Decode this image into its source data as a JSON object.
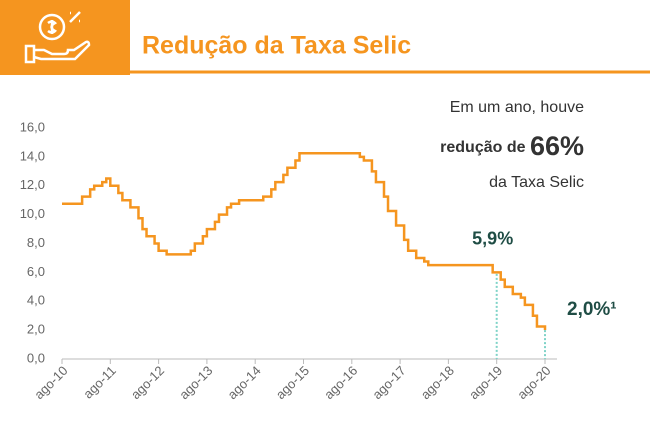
{
  "chart_data": {
    "type": "line",
    "title": "Redução da Taxa Selic",
    "step": true,
    "color": "#f5951f",
    "x": [
      0,
      5,
      7,
      8,
      10,
      11,
      12,
      14,
      15,
      17,
      19,
      20,
      21,
      23,
      24,
      26,
      32,
      33,
      35,
      36,
      38,
      39,
      41,
      42,
      44,
      50,
      52,
      53,
      55,
      56,
      58,
      59,
      74,
      75,
      77,
      78,
      80,
      81,
      83,
      85,
      86,
      88,
      90,
      91,
      107,
      109,
      110,
      112,
      114,
      115,
      117,
      118,
      120
    ],
    "values": [
      10.75,
      11.25,
      11.75,
      12.0,
      12.25,
      12.5,
      12.0,
      11.5,
      11.0,
      10.5,
      9.75,
      9.0,
      8.5,
      8.0,
      7.5,
      7.25,
      7.5,
      8.0,
      8.5,
      9.0,
      9.5,
      10.0,
      10.5,
      10.75,
      11.0,
      11.25,
      11.75,
      12.25,
      12.75,
      13.25,
      13.75,
      14.25,
      14.0,
      13.75,
      13.0,
      12.25,
      11.25,
      10.25,
      9.25,
      8.25,
      7.5,
      7.0,
      6.75,
      6.5,
      6.0,
      5.5,
      5.0,
      4.5,
      4.25,
      3.75,
      3.0,
      2.25,
      2.0
    ],
    "xlim": [
      0,
      120
    ],
    "xticks": [
      {
        "value": 0,
        "label": "ago-10"
      },
      {
        "value": 12,
        "label": "ago-11"
      },
      {
        "value": 24,
        "label": "ago-12"
      },
      {
        "value": 36,
        "label": "ago-13"
      },
      {
        "value": 48,
        "label": "ago-14"
      },
      {
        "value": 60,
        "label": "ago-15"
      },
      {
        "value": 72,
        "label": "ago-16"
      },
      {
        "value": 84,
        "label": "ago-17"
      },
      {
        "value": 96,
        "label": "ago-18"
      },
      {
        "value": 108,
        "label": "ago-19"
      },
      {
        "value": 120,
        "label": "ago-20"
      }
    ],
    "ylim": [
      0,
      16
    ],
    "yticks": [
      {
        "value": 0,
        "label": "0,0"
      },
      {
        "value": 2,
        "label": "2,0"
      },
      {
        "value": 4,
        "label": "4,0"
      },
      {
        "value": 6,
        "label": "6,0"
      },
      {
        "value": 8,
        "label": "8,0"
      },
      {
        "value": 10,
        "label": "10,0"
      },
      {
        "value": 12,
        "label": "12,0"
      },
      {
        "value": 14,
        "label": "14,0"
      },
      {
        "value": 16,
        "label": "16,0"
      }
    ],
    "annotations": {
      "line1": "Em um ano, houve",
      "line2a": "redução de",
      "line2b": "66%",
      "line3": "da Taxa Selic",
      "mark1": {
        "x": 108,
        "value": 5.9,
        "label": "5,9%"
      },
      "mark2": {
        "x": 120,
        "value": 2.0,
        "label": "2,0%¹"
      }
    }
  }
}
